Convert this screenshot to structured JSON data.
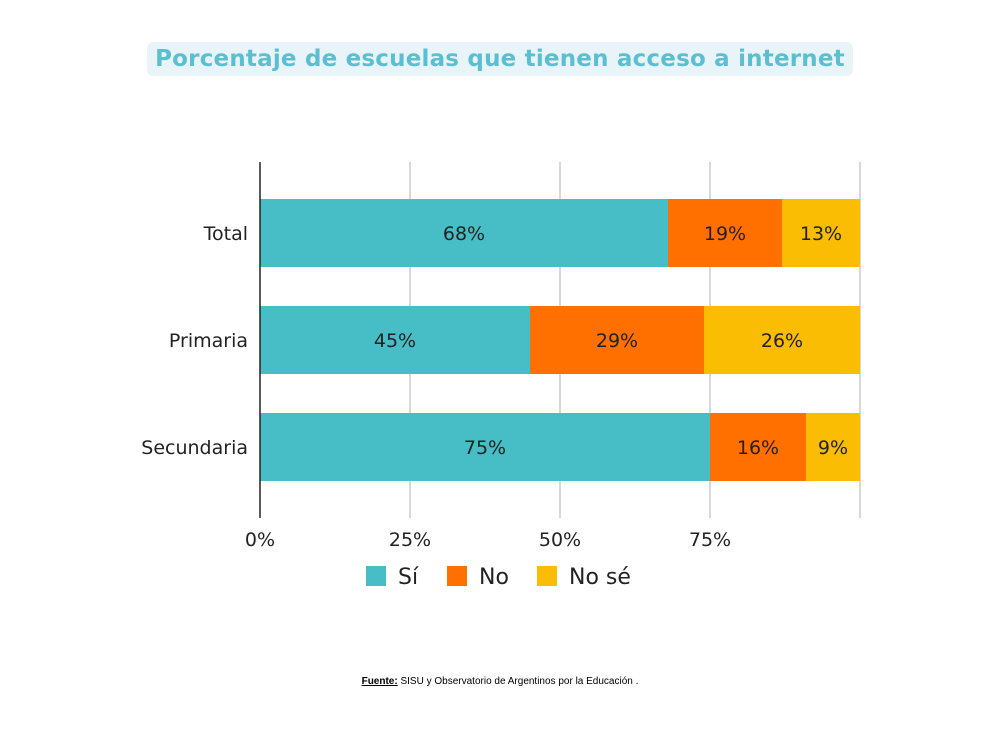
{
  "title": "Porcentaje de escuelas que tienen acceso a internet",
  "source": {
    "label": "Fuente:",
    "text": " SISU y Observatorio de Argentinos por la Educación ."
  },
  "colors": {
    "si": "#47bdc5",
    "no": "#ff7000",
    "nose": "#fbbc04"
  },
  "chart_data": {
    "type": "bar",
    "orientation": "horizontal",
    "stacked": true,
    "categories": [
      "Total",
      "Primaria",
      "Secundaria"
    ],
    "series": [
      {
        "name": "Sí",
        "values": [
          68,
          45,
          75
        ],
        "labels": [
          "68%",
          "45%",
          "75%"
        ]
      },
      {
        "name": "No",
        "values": [
          19,
          29,
          16
        ],
        "labels": [
          "19%",
          "29%",
          "16%"
        ]
      },
      {
        "name": "No sé",
        "values": [
          13,
          26,
          9
        ],
        "labels": [
          "13%",
          "26%",
          "9%"
        ]
      }
    ],
    "xlim": [
      0,
      100
    ],
    "xticks": [
      0,
      25,
      50,
      75
    ],
    "xtick_labels": [
      "0%",
      "25%",
      "50%",
      "75%"
    ],
    "grid": true,
    "legend_position": "bottom"
  }
}
